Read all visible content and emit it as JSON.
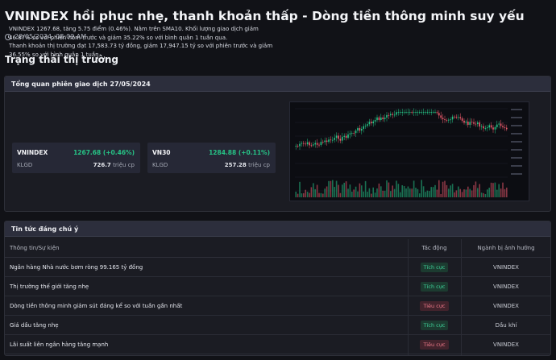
{
  "header": {
    "title": "VNINDEX hồi phục nhẹ, thanh khoản thấp - Dòng tiền thông minh suy yếu",
    "timestamp": "28/05/2024, 08:09 AM",
    "section_title": "Trạng thái thị trường"
  },
  "overview": {
    "title": "Tổng quan phiên giao dịch 27/05/2024",
    "paragraph1": "VNINDEX 1267.68, tăng 5.75 điểm (0.46%). Nằm trên SMA10. Khối lượng giao dịch giảm 46.87% so với phiên hôm trước và giảm 35.22% so với bình quân 1 tuần qua.",
    "paragraph2": "Thanh khoản thị trường đạt 17,583.73 tỷ đồng, giảm 17,947.15 tỷ so với phiên trước và giảm 36.55% so với bình quân 1 tuần.",
    "indices": [
      {
        "name": "VNINDEX",
        "value": "1267.68 (+0.46%)",
        "klgd_label": "KLGD",
        "volume": "726.7",
        "volume_unit": "triệu cp"
      },
      {
        "name": "VN30",
        "value": "1284.88 (+0.11%)",
        "klgd_label": "KLGD",
        "volume": "257.28",
        "volume_unit": "triệu cp"
      }
    ]
  },
  "colors": {
    "up": "#26c386",
    "down": "#ef5b6d",
    "accent_header": "#2c2e3c"
  },
  "news": {
    "title": "Tin tức đáng chú ý",
    "columns": [
      "Thông tin/Sự kiện",
      "Tác động",
      "Ngành bị ảnh hưởng"
    ],
    "rows": [
      {
        "event": "Ngân hàng Nhà nước bơm ròng 99.165 tỷ đồng",
        "impact": "Tích cực",
        "sector": "VNINDEX"
      },
      {
        "event": "Thị trường thế giới tăng nhẹ",
        "impact": "Tích cực",
        "sector": "VNINDEX"
      },
      {
        "event": "Dòng tiền thông minh giảm sút đáng kể so với tuần gần nhất",
        "impact": "Tiêu cực",
        "sector": "VNINDEX"
      },
      {
        "event": "Giá dầu tăng nhẹ",
        "impact": "Tích cực",
        "sector": "Dầu khí"
      },
      {
        "event": "Lãi suất liên ngân hàng tăng mạnh",
        "impact": "Tiêu cực",
        "sector": "VNINDEX"
      }
    ]
  }
}
